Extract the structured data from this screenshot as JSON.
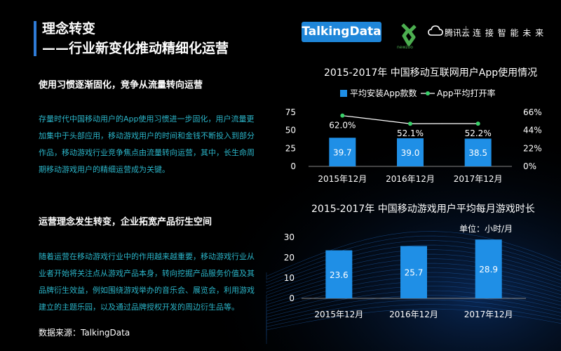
{
  "header": {
    "title_line1": "理念转变",
    "title_line2": "——行业新变化推动精细化运营"
  },
  "logos": {
    "talkingdata": "TalkingData",
    "newzoo": "newzoo",
    "tencent_name": "腾讯云",
    "tencent_slogan": "连 接 智 能 未 来"
  },
  "sections": [
    {
      "heading": "使用习惯逐渐固化，竞争从流量转向运营",
      "lines": [
        "存量时代中国移动用户的App使用习惯进一步固化，用户流量更",
        "加集中于头部应用，移动游戏用户的时间和金钱不断投入到部分",
        "作品，移动游戏行业竞争焦点由流量转向运营，其中，长生命周",
        "期移动游戏用户的精细运营成为关键。"
      ]
    },
    {
      "heading": "运营理念发生转变，企业拓宽产品衍生空间",
      "lines": [
        "随着运营在移动游戏行业中的作用越来越重要，移动游戏行业从",
        "业者开始将关注点从游戏产品本身，转向挖掘产品服务价值及其",
        "品牌衍生效益，例如围绕游戏举办的音乐会、展览会，利用游戏",
        "建立的主题乐园，以及通过品牌授权开发的周边衍生品等。"
      ]
    }
  ],
  "source": "数据来源：TalkingData",
  "colors": {
    "bar": "#1f8fe6",
    "line": "#ffffff",
    "accent": "#2f7bd6",
    "body_text": "#2bb5c9"
  },
  "chart_data": [
    {
      "type": "bar",
      "title": "2015-2017年 中国移动互联网用户App使用情况",
      "categories": [
        "2015年12月",
        "2016年12月",
        "2017年12月"
      ],
      "series": [
        {
          "name": "平均安装App款数",
          "type": "bar",
          "axis": "left",
          "values": [
            39.7,
            39.0,
            38.5
          ],
          "labels": [
            "39.7",
            "39.0",
            "38.5"
          ]
        },
        {
          "name": "App平均打开率",
          "type": "line",
          "axis": "right",
          "values": [
            62.0,
            52.1,
            52.2
          ],
          "labels": [
            "62.0%",
            "52.1%",
            "52.2%"
          ]
        }
      ],
      "ylim": [
        0,
        75
      ],
      "yticks": [
        "0",
        "25",
        "50",
        "75"
      ],
      "y2lim": [
        0,
        66
      ],
      "y2ticks": [
        "0%",
        "22%",
        "44%",
        "66%"
      ],
      "legend_position": "top"
    },
    {
      "type": "bar",
      "title": "2015-2017年  中国移动游戏用户平均每月游戏时长",
      "unit_label": "单位：小时/月",
      "categories": [
        "2015年12月",
        "2016年12月",
        "2017年12月"
      ],
      "series": [
        {
          "values": [
            23.6,
            25.7,
            28.9
          ],
          "labels": [
            "23.6",
            "25.7",
            "28.9"
          ]
        }
      ],
      "ylim": [
        0,
        30
      ],
      "yticks": [
        "0",
        "10",
        "20",
        "30"
      ]
    }
  ]
}
